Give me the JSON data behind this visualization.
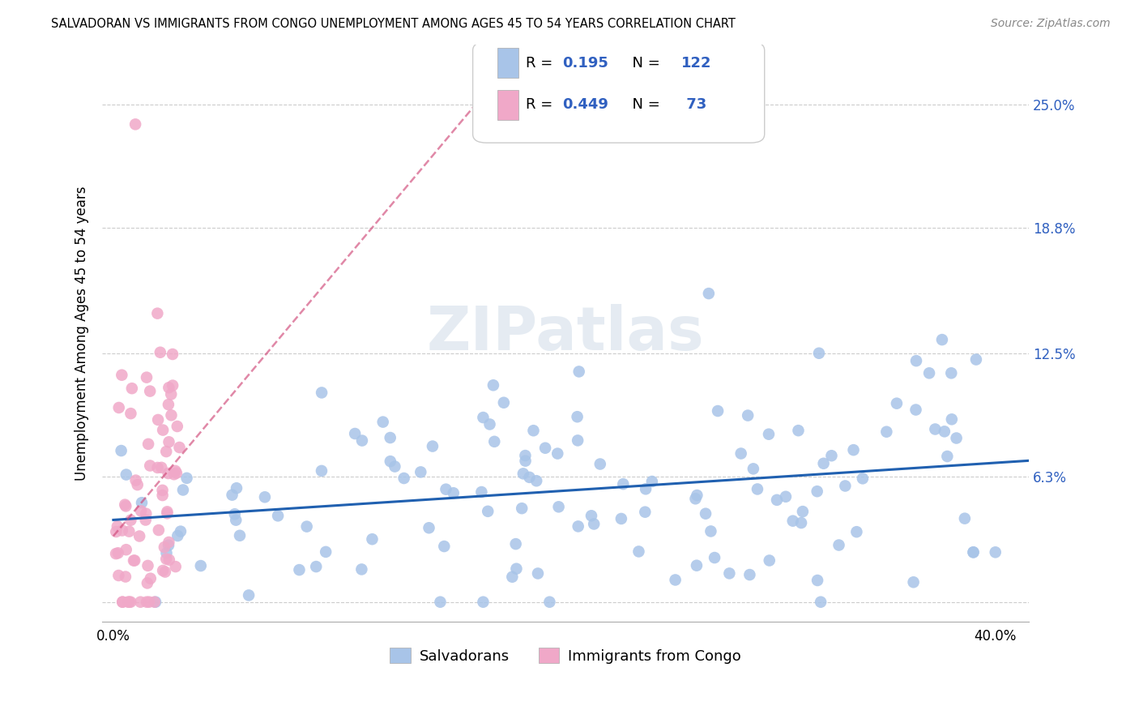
{
  "title": "SALVADORAN VS IMMIGRANTS FROM CONGO UNEMPLOYMENT AMONG AGES 45 TO 54 YEARS CORRELATION CHART",
  "source": "Source: ZipAtlas.com",
  "ylabel": "Unemployment Among Ages 45 to 54 years",
  "watermark": "ZIPatlas",
  "xlim": [
    -0.005,
    0.415
  ],
  "ylim": [
    -0.01,
    0.28
  ],
  "ytick_vals": [
    0.0,
    0.063,
    0.125,
    0.188,
    0.25
  ],
  "ytick_labels": [
    "",
    "6.3%",
    "12.5%",
    "18.8%",
    "25.0%"
  ],
  "xtick_vals": [
    0.0,
    0.1,
    0.2,
    0.3,
    0.4
  ],
  "xtick_labels": [
    "0.0%",
    "",
    "",
    "",
    "40.0%"
  ],
  "blue_R": 0.195,
  "blue_N": 122,
  "pink_R": 0.449,
  "pink_N": 73,
  "blue_color": "#a8c4e8",
  "pink_color": "#f0a8c8",
  "blue_line_color": "#2060b0",
  "pink_line_color": "#d04878",
  "legend_blue_label": "R =  0.195   N = 122",
  "legend_pink_label": "R =  0.449   N =  73",
  "bottom_labels": [
    "Salvadorans",
    "Immigrants from Congo"
  ],
  "title_fontsize": 10.5,
  "axis_label_fontsize": 12,
  "tick_fontsize": 12,
  "legend_fontsize": 13,
  "source_fontsize": 10,
  "right_tick_color": "#3060c0"
}
